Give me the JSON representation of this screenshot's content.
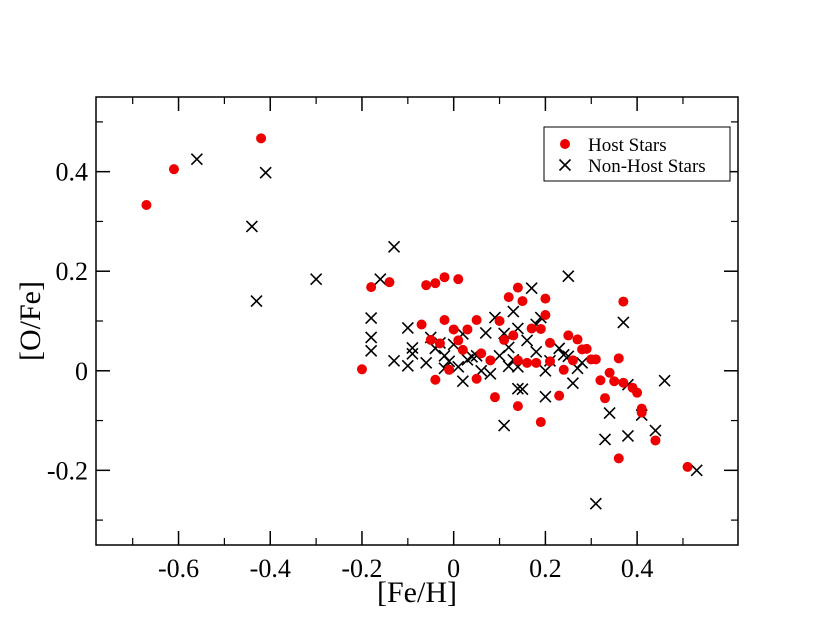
{
  "chart_data": {
    "type": "scatter",
    "title": "",
    "xlabel": "[Fe/H]",
    "ylabel": "[O/Fe]",
    "xlim": [
      -0.78,
      0.62
    ],
    "ylim": [
      -0.35,
      0.55
    ],
    "x_ticks": [
      -0.6,
      -0.4,
      -0.2,
      0,
      0.2,
      0.4
    ],
    "x_tick_labels": [
      "-0.6",
      "-0.4",
      "-0.2",
      "0",
      "0.2",
      "0.4"
    ],
    "y_ticks": [
      -0.2,
      0,
      0.2,
      0.4
    ],
    "y_tick_labels": [
      "-0.2",
      "0",
      "0.2",
      "0.4"
    ],
    "legend_position": "top-right",
    "series": [
      {
        "name": "Host Stars",
        "marker": "filled-circle",
        "color": "#ee0000",
        "points": [
          [
            -0.67,
            0.333
          ],
          [
            -0.61,
            0.405
          ],
          [
            -0.42,
            0.467
          ],
          [
            -0.2,
            0.003
          ],
          [
            -0.18,
            0.168
          ],
          [
            -0.14,
            0.178
          ],
          [
            -0.06,
            0.172
          ],
          [
            -0.04,
            0.176
          ],
          [
            -0.02,
            0.188
          ],
          [
            0.01,
            0.184
          ],
          [
            -0.07,
            0.093
          ],
          [
            -0.02,
            0.102
          ],
          [
            0.0,
            0.083
          ],
          [
            0.03,
            0.083
          ],
          [
            0.05,
            0.102
          ],
          [
            -0.05,
            0.062
          ],
          [
            -0.03,
            0.055
          ],
          [
            0.01,
            0.061
          ],
          [
            0.02,
            0.042
          ],
          [
            0.06,
            0.035
          ],
          [
            -0.04,
            -0.018
          ],
          [
            -0.01,
            0.002
          ],
          [
            0.05,
            -0.016
          ],
          [
            0.08,
            0.021
          ],
          [
            0.09,
            -0.053
          ],
          [
            0.1,
            0.1
          ],
          [
            0.12,
            0.148
          ],
          [
            0.14,
            0.167
          ],
          [
            0.15,
            0.14
          ],
          [
            0.17,
            0.085
          ],
          [
            0.11,
            0.062
          ],
          [
            0.13,
            0.071
          ],
          [
            0.14,
            0.021
          ],
          [
            0.16,
            0.016
          ],
          [
            0.18,
            0.016
          ],
          [
            0.14,
            -0.071
          ],
          [
            0.19,
            -0.103
          ],
          [
            0.19,
            0.084
          ],
          [
            0.2,
            0.145
          ],
          [
            0.2,
            0.112
          ],
          [
            0.21,
            0.056
          ],
          [
            0.21,
            0.019
          ],
          [
            0.23,
            -0.05
          ],
          [
            0.24,
            0.002
          ],
          [
            0.25,
            0.071
          ],
          [
            0.26,
            0.021
          ],
          [
            0.27,
            0.063
          ],
          [
            0.28,
            0.043
          ],
          [
            0.29,
            0.044
          ],
          [
            0.3,
            0.023
          ],
          [
            0.31,
            0.023
          ],
          [
            0.32,
            -0.019
          ],
          [
            0.33,
            -0.055
          ],
          [
            0.34,
            -0.004
          ],
          [
            0.35,
            -0.021
          ],
          [
            0.36,
            0.025
          ],
          [
            0.36,
            -0.176
          ],
          [
            0.37,
            0.139
          ],
          [
            0.37,
            -0.024
          ],
          [
            0.39,
            -0.034
          ],
          [
            0.4,
            -0.044
          ],
          [
            0.41,
            -0.076
          ],
          [
            0.41,
            -0.084
          ],
          [
            0.44,
            -0.14
          ],
          [
            0.51,
            -0.193
          ]
        ]
      },
      {
        "name": "Non-Host Stars",
        "marker": "x",
        "color": "#000000",
        "points": [
          [
            -0.56,
            0.425
          ],
          [
            -0.41,
            0.398
          ],
          [
            -0.44,
            0.29
          ],
          [
            -0.43,
            0.14
          ],
          [
            -0.3,
            0.184
          ],
          [
            -0.16,
            0.184
          ],
          [
            -0.13,
            0.249
          ],
          [
            -0.18,
            0.106
          ],
          [
            -0.18,
            0.067
          ],
          [
            -0.18,
            0.04
          ],
          [
            -0.13,
            0.02
          ],
          [
            -0.1,
            0.086
          ],
          [
            -0.1,
            0.01
          ],
          [
            -0.09,
            0.046
          ],
          [
            -0.09,
            0.034
          ],
          [
            -0.06,
            0.016
          ],
          [
            -0.05,
            0.067
          ],
          [
            -0.04,
            0.045
          ],
          [
            -0.03,
            0.056
          ],
          [
            -0.02,
            0.03
          ],
          [
            -0.02,
            0.005
          ],
          [
            -0.01,
            0.019
          ],
          [
            0.0,
            0.053
          ],
          [
            0.01,
            0.008
          ],
          [
            0.02,
            0.074
          ],
          [
            0.02,
            -0.021
          ],
          [
            0.03,
            0.022
          ],
          [
            0.04,
            0.028
          ],
          [
            0.05,
            0.03
          ],
          [
            0.06,
            0.0
          ],
          [
            0.07,
            0.076
          ],
          [
            0.08,
            -0.006
          ],
          [
            0.09,
            0.107
          ],
          [
            0.1,
            0.03
          ],
          [
            0.11,
            -0.11
          ],
          [
            0.11,
            0.075
          ],
          [
            0.12,
            0.009
          ],
          [
            0.12,
            0.047
          ],
          [
            0.13,
            0.119
          ],
          [
            0.13,
            0.022
          ],
          [
            0.14,
            0.008
          ],
          [
            0.14,
            0.085
          ],
          [
            0.14,
            -0.036
          ],
          [
            0.15,
            -0.037
          ],
          [
            0.16,
            0.061
          ],
          [
            0.17,
            0.166
          ],
          [
            0.18,
            0.038
          ],
          [
            0.18,
            0.093
          ],
          [
            0.19,
            0.107
          ],
          [
            0.2,
            0.0
          ],
          [
            0.2,
            -0.052
          ],
          [
            0.21,
            0.02
          ],
          [
            0.23,
            0.045
          ],
          [
            0.24,
            0.032
          ],
          [
            0.25,
            0.19
          ],
          [
            0.25,
            0.029
          ],
          [
            0.26,
            -0.025
          ],
          [
            0.27,
            0.005
          ],
          [
            0.28,
            0.016
          ],
          [
            0.31,
            -0.267
          ],
          [
            0.33,
            -0.138
          ],
          [
            0.34,
            -0.085
          ],
          [
            0.37,
            0.097
          ],
          [
            0.38,
            -0.131
          ],
          [
            0.38,
            -0.028
          ],
          [
            0.41,
            -0.089
          ],
          [
            0.44,
            -0.12
          ],
          [
            0.46,
            -0.02
          ],
          [
            0.53,
            -0.2
          ]
        ]
      }
    ]
  }
}
